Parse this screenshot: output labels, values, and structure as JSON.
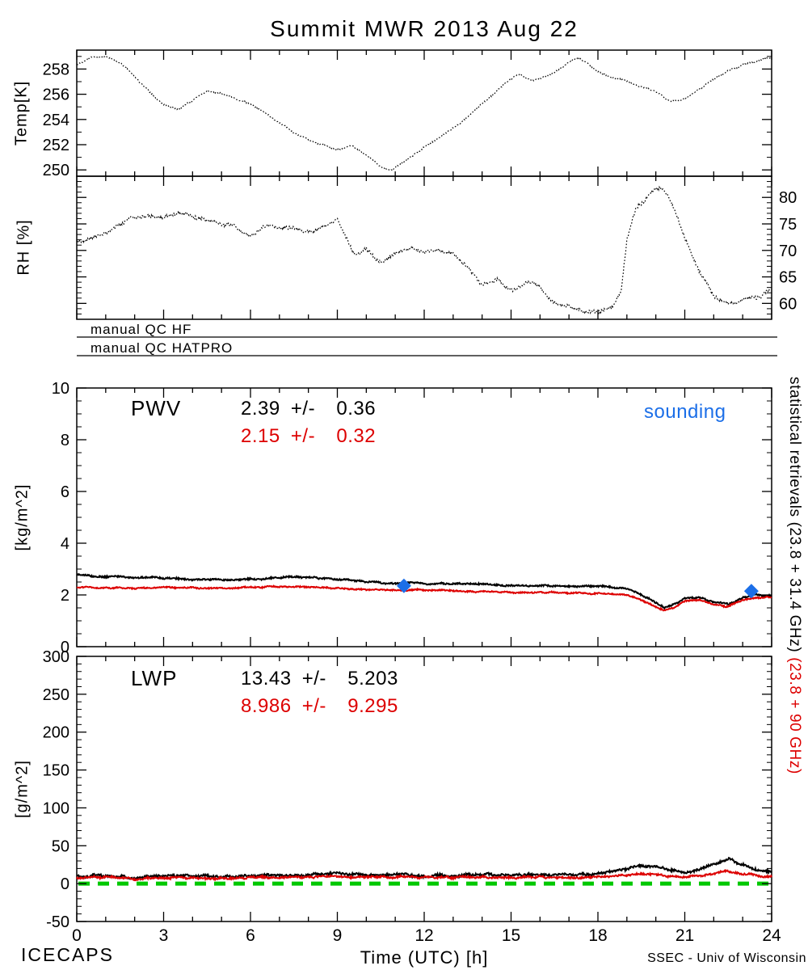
{
  "title": "Summit MWR 2013 Aug 22",
  "colors": {
    "black": "#000000",
    "red": "#dd0000",
    "blue": "#1c6fe8",
    "green": "#00c800"
  },
  "xaxis": {
    "label": "Time (UTC) [h]",
    "min": 0,
    "max": 24,
    "ticks": [
      0,
      3,
      6,
      9,
      12,
      15,
      18,
      21,
      24
    ],
    "minor_step": 1
  },
  "qc": {
    "hf": "manual QC HF",
    "hatpro": "manual QC HATPRO"
  },
  "footer": {
    "left": "ICECAPS",
    "right": "SSEC - Univ of Wisconsin"
  },
  "right_annotation": {
    "black": "statistical retrievals (23.8 + 31.4 GHz)",
    "red": " (23.8 + 90 GHz)"
  },
  "chart_data": [
    {
      "id": "temp",
      "type": "line",
      "ylabel": "Temp[K]",
      "ylim": [
        249.5,
        259.5
      ],
      "yticks": [
        250,
        252,
        254,
        256,
        258
      ],
      "yminor": 1,
      "tick_label_side": "left",
      "xlim": [
        0,
        24
      ],
      "grid": false,
      "series": [
        {
          "name": "temperature",
          "color": "black",
          "style": "dotted",
          "width": 1.2,
          "noise": 0.1,
          "x": [
            0,
            0.5,
            1,
            1.5,
            2,
            2.5,
            3,
            3.5,
            4,
            4.5,
            5,
            5.5,
            6,
            6.5,
            7,
            7.5,
            8,
            8.5,
            9,
            9.5,
            10,
            10.5,
            10.8,
            11,
            11.5,
            12,
            12.5,
            13,
            13.5,
            14,
            14.5,
            15,
            15.3,
            15.7,
            16,
            16.5,
            17,
            17.3,
            17.6,
            18,
            18.5,
            19,
            19.5,
            20,
            20.5,
            21,
            21.5,
            22,
            22.5,
            23,
            23.5,
            24
          ],
          "y": [
            258.4,
            258.9,
            259.0,
            258.5,
            257.4,
            256.2,
            255.2,
            254.8,
            255.5,
            256.3,
            256.1,
            255.6,
            255.2,
            254.5,
            253.7,
            253.0,
            252.4,
            252.0,
            251.6,
            251.9,
            251.2,
            250.3,
            249.9,
            250.2,
            251.0,
            251.8,
            252.5,
            253.3,
            254.2,
            255.2,
            256.2,
            257.2,
            257.6,
            257.1,
            257.2,
            257.7,
            258.5,
            258.9,
            258.5,
            257.8,
            257.4,
            257.0,
            256.6,
            256.2,
            255.4,
            255.6,
            256.4,
            257.2,
            257.9,
            258.3,
            258.6,
            258.9
          ]
        }
      ]
    },
    {
      "id": "rh",
      "type": "line",
      "ylabel": "RH [%]",
      "ylim": [
        57,
        84
      ],
      "yticks": [
        60,
        65,
        70,
        75,
        80
      ],
      "yminor": 1,
      "tick_label_side": "right",
      "xlim": [
        0,
        24
      ],
      "grid": false,
      "series": [
        {
          "name": "relative-humidity",
          "color": "black",
          "style": "dotted",
          "width": 1.2,
          "noise": 0.55,
          "x": [
            0,
            0.5,
            1,
            1.5,
            2,
            2.5,
            3,
            3.5,
            4,
            4.5,
            5,
            5.5,
            6,
            6.3,
            6.6,
            7,
            7.5,
            8,
            8.5,
            9,
            9.3,
            9.6,
            10,
            10.3,
            10.6,
            11,
            11.5,
            12,
            12.5,
            13,
            13.5,
            14,
            14.5,
            15,
            15.5,
            16,
            16.3,
            16.6,
            17,
            17.5,
            18,
            18.5,
            18.8,
            19,
            19.3,
            19.6,
            20,
            20.3,
            20.6,
            21,
            21.5,
            22,
            22.5,
            23,
            23.5,
            24
          ],
          "y": [
            71.5,
            72.5,
            73.5,
            75.0,
            76.5,
            76.3,
            76.0,
            77.0,
            76.5,
            75.5,
            75.0,
            74.5,
            72.5,
            74.0,
            74.5,
            74.5,
            74.0,
            73.5,
            74.5,
            75.8,
            72.5,
            69.0,
            70.5,
            68.5,
            67.5,
            69.5,
            70.5,
            69.5,
            70.0,
            69.5,
            67.0,
            63.5,
            64.5,
            62.5,
            64.0,
            63.5,
            61.0,
            60.0,
            59.5,
            58.5,
            58.5,
            59.0,
            62.0,
            72.0,
            77.5,
            79.5,
            82.0,
            81.0,
            78.5,
            72.0,
            66.0,
            61.5,
            60.0,
            60.5,
            61.0,
            62.5
          ]
        }
      ]
    },
    {
      "id": "pwv",
      "type": "line",
      "ylabel": "[kg/m^2]",
      "ylim": [
        0,
        10
      ],
      "yticks": [
        0,
        2,
        4,
        6,
        8,
        10
      ],
      "yminor": 0.5,
      "tick_label_side": "left",
      "xlim": [
        0,
        24
      ],
      "grid": false,
      "annotations": {
        "label": "PWV",
        "stat_black": "2.39 +/-  0.36",
        "stat_red": "2.15 +/-  0.32",
        "legend": "sounding"
      },
      "series": [
        {
          "name": "pwv-23.8-31.4",
          "color": "black",
          "style": "solid",
          "width": 2,
          "noise": 0.05,
          "x": [
            0,
            1,
            2,
            3,
            4,
            5,
            6,
            7,
            8,
            9,
            10,
            11,
            12,
            13,
            14,
            15,
            16,
            17,
            18,
            18.5,
            19,
            19.5,
            20,
            20.3,
            20.6,
            21,
            21.5,
            22,
            22.5,
            23,
            23.5,
            24
          ],
          "y": [
            2.8,
            2.7,
            2.68,
            2.65,
            2.6,
            2.58,
            2.6,
            2.68,
            2.68,
            2.6,
            2.5,
            2.45,
            2.45,
            2.42,
            2.4,
            2.38,
            2.36,
            2.34,
            2.33,
            2.3,
            2.25,
            2.0,
            1.7,
            1.5,
            1.6,
            1.85,
            1.9,
            1.75,
            1.65,
            1.9,
            2.0,
            1.95
          ]
        },
        {
          "name": "pwv-23.8-90",
          "color": "red",
          "style": "solid",
          "width": 2,
          "noise": 0.04,
          "x": [
            0,
            1,
            2,
            3,
            4,
            5,
            6,
            7,
            8,
            9,
            10,
            11,
            12,
            13,
            14,
            15,
            16,
            17,
            18,
            18.5,
            19,
            19.5,
            20,
            20.3,
            20.6,
            21,
            21.5,
            22,
            22.5,
            23,
            23.5,
            24
          ],
          "y": [
            2.3,
            2.28,
            2.26,
            2.3,
            2.28,
            2.25,
            2.3,
            2.32,
            2.3,
            2.26,
            2.2,
            2.18,
            2.2,
            2.16,
            2.12,
            2.1,
            2.1,
            2.08,
            2.05,
            2.02,
            2.0,
            1.8,
            1.55,
            1.4,
            1.5,
            1.75,
            1.8,
            1.65,
            1.55,
            1.8,
            1.9,
            1.9
          ]
        }
      ],
      "points": [
        {
          "name": "sounding",
          "color": "blue",
          "marker": "diamond",
          "size": 9,
          "x": [
            11.3,
            23.3
          ],
          "y": [
            2.35,
            2.15
          ]
        }
      ]
    },
    {
      "id": "lwp",
      "type": "line",
      "ylabel": "[g/m^2]",
      "ylim": [
        -50,
        300
      ],
      "yticks": [
        -50,
        0,
        50,
        100,
        150,
        200,
        250,
        300
      ],
      "yminor": 10,
      "tick_label_side": "left",
      "xlim": [
        0,
        24
      ],
      "grid": false,
      "annotations": {
        "label": "LWP",
        "stat_black": "13.43 +/-  5.203",
        "stat_red": "8.986 +/-  9.295"
      },
      "refline": {
        "y": 0,
        "color": "green",
        "style": "dashed",
        "width": 5
      },
      "series": [
        {
          "name": "lwp-23.8-31.4",
          "color": "black",
          "style": "solid",
          "width": 2,
          "noise": 2.5,
          "x": [
            0,
            1,
            2,
            3,
            4,
            5,
            6,
            7,
            8,
            9,
            10,
            11,
            12,
            13,
            14,
            15,
            16,
            17,
            18,
            18.5,
            19,
            19.5,
            20,
            20.5,
            21,
            21.5,
            22,
            22.5,
            23,
            23.5,
            24
          ],
          "y": [
            10,
            11,
            8,
            10,
            11,
            9,
            10,
            11,
            12,
            13,
            11,
            12,
            11,
            10,
            12,
            11,
            12,
            12,
            13,
            15,
            20,
            24,
            22,
            18,
            15,
            18,
            25,
            33,
            25,
            18,
            15
          ]
        },
        {
          "name": "lwp-23.8-90",
          "color": "red",
          "style": "solid",
          "width": 2,
          "noise": 2,
          "x": [
            0,
            1,
            2,
            3,
            4,
            5,
            6,
            7,
            8,
            9,
            10,
            11,
            12,
            13,
            14,
            15,
            16,
            17,
            18,
            18.5,
            19,
            19.5,
            20,
            20.5,
            21,
            21.5,
            22,
            22.5,
            23,
            23.5,
            24
          ],
          "y": [
            8,
            9,
            6,
            8,
            8,
            7,
            8,
            8,
            9,
            9,
            8,
            9,
            8,
            8,
            9,
            8,
            9,
            8,
            9,
            10,
            12,
            13,
            12,
            10,
            9,
            10,
            13,
            16,
            13,
            10,
            9
          ]
        }
      ]
    }
  ]
}
